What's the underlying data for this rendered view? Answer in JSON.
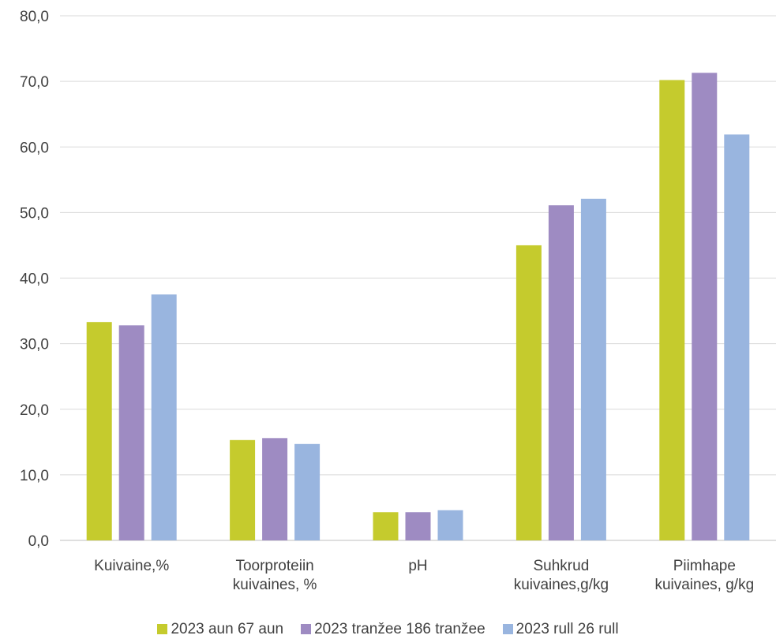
{
  "chart_data": {
    "type": "bar",
    "categories": [
      [
        "Kuivaine,%"
      ],
      [
        "Toorproteiin",
        "kuivaines, %"
      ],
      [
        "pH"
      ],
      [
        "Suhkrud",
        "kuivaines,g/kg"
      ],
      [
        "Piimhape",
        "kuivaines, g/kg"
      ]
    ],
    "series": [
      {
        "name": "2023 aun 67 aun",
        "color": "#c5cb2d",
        "values": [
          33.3,
          15.3,
          4.3,
          45.0,
          70.2
        ]
      },
      {
        "name": "2023 tranžee 186 tranžee",
        "color": "#9e8bc2",
        "values": [
          32.8,
          15.6,
          4.3,
          51.1,
          71.3
        ]
      },
      {
        "name": "2023 rull 26 rull",
        "color": "#99b5df",
        "values": [
          37.5,
          14.7,
          4.6,
          52.1,
          61.9
        ]
      }
    ],
    "ylim": [
      0,
      80
    ],
    "yticks": [
      "0,0",
      "10,0",
      "20,0",
      "30,0",
      "40,0",
      "50,0",
      "60,0",
      "70,0",
      "80,0"
    ],
    "grid": true,
    "legend_position": "bottom"
  }
}
